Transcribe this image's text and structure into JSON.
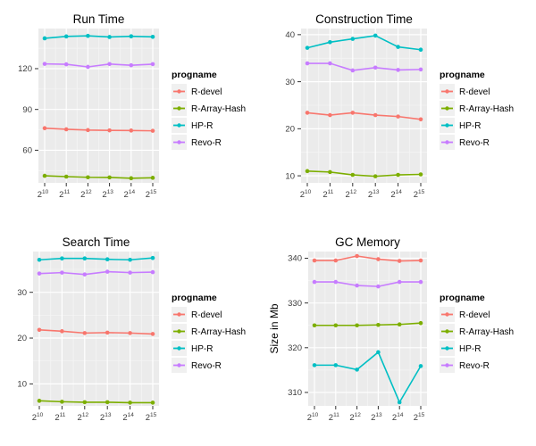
{
  "page": {
    "background": "#FFFFFF"
  },
  "theme": {
    "panel_bg": "#EBEBEB",
    "grid_major_color": "#FFFFFF",
    "grid_minor_color": "#F5F5F5",
    "tick_mark_color": "#333333",
    "tick_label_color": "#3C3C3C",
    "title_color": "#000000",
    "axis_title_color": "#000000",
    "legend_key_bg": "#F0F0F0",
    "legend_text_color": "#000000"
  },
  "legend": {
    "title": "progname",
    "entries": [
      {
        "label": "R-devel",
        "color": "#F8766D"
      },
      {
        "label": "R-Array-Hash",
        "color": "#7CAE00"
      },
      {
        "label": "HP-R",
        "color": "#00BFC4"
      },
      {
        "label": "Revo-R",
        "color": "#C77CFF"
      }
    ]
  },
  "x_axis": {
    "base": "2",
    "exponents": [
      "10",
      "11",
      "12",
      "13",
      "14",
      "15"
    ]
  },
  "chart_data": [
    {
      "type": "line",
      "title": "Run Time",
      "xlabel": "",
      "ylabel": "",
      "x_tick_labels": [
        "2^10",
        "2^11",
        "2^12",
        "2^13",
        "2^14",
        "2^15"
      ],
      "y_ticks": [
        60,
        90,
        120
      ],
      "ylim": [
        36,
        149.5
      ],
      "grid": true,
      "legend_position": "right",
      "series": [
        {
          "name": "R-devel",
          "values": [
            76.2,
            75.4,
            74.8,
            74.6,
            74.5,
            74.3
          ]
        },
        {
          "name": "R-Array-Hash",
          "values": [
            41.2,
            40.6,
            40.1,
            40.0,
            39.4,
            39.7
          ]
        },
        {
          "name": "HP-R",
          "values": [
            142.3,
            143.7,
            144.1,
            143.3,
            143.8,
            143.4
          ]
        },
        {
          "name": "Revo-R",
          "values": [
            123.5,
            123.2,
            121.3,
            123.4,
            122.5,
            123.3
          ]
        }
      ]
    },
    {
      "type": "line",
      "title": "Construction Time",
      "xlabel": "",
      "ylabel": "",
      "x_tick_labels": [
        "2^10",
        "2^11",
        "2^12",
        "2^13",
        "2^14",
        "2^15"
      ],
      "y_ticks": [
        10,
        20,
        30,
        40
      ],
      "ylim": [
        8.5,
        41.3
      ],
      "grid": true,
      "legend_position": "right",
      "series": [
        {
          "name": "R-devel",
          "values": [
            23.4,
            22.9,
            23.4,
            22.9,
            22.6,
            22.0
          ]
        },
        {
          "name": "R-Array-Hash",
          "values": [
            11.0,
            10.8,
            10.2,
            9.9,
            10.2,
            10.3
          ]
        },
        {
          "name": "HP-R",
          "values": [
            37.2,
            38.4,
            39.1,
            39.8,
            37.4,
            36.8
          ]
        },
        {
          "name": "Revo-R",
          "values": [
            33.9,
            33.9,
            32.4,
            33.0,
            32.5,
            32.6
          ]
        }
      ]
    },
    {
      "type": "line",
      "title": "Search Time",
      "xlabel": "",
      "ylabel": "",
      "x_tick_labels": [
        "2^10",
        "2^11",
        "2^12",
        "2^13",
        "2^14",
        "2^15"
      ],
      "y_ticks": [
        10,
        20,
        30
      ],
      "ylim": [
        5.2,
        38.9
      ],
      "grid": true,
      "legend_position": "right",
      "series": [
        {
          "name": "R-devel",
          "values": [
            21.8,
            21.5,
            21.1,
            21.2,
            21.1,
            20.9
          ]
        },
        {
          "name": "R-Array-Hash",
          "values": [
            6.3,
            6.1,
            6.0,
            6.0,
            5.9,
            5.9
          ]
        },
        {
          "name": "HP-R",
          "values": [
            37.1,
            37.4,
            37.4,
            37.2,
            37.1,
            37.5
          ]
        },
        {
          "name": "Revo-R",
          "values": [
            34.1,
            34.3,
            33.9,
            34.5,
            34.3,
            34.4
          ]
        }
      ]
    },
    {
      "type": "line",
      "title": "GC Memory",
      "xlabel": "",
      "ylabel": "Size in Mb",
      "x_tick_labels": [
        "2^10",
        "2^11",
        "2^12",
        "2^13",
        "2^14",
        "2^15"
      ],
      "y_ticks": [
        310,
        320,
        330,
        340
      ],
      "ylim": [
        307,
        341.5
      ],
      "grid": true,
      "legend_position": "right",
      "series": [
        {
          "name": "R-devel",
          "values": [
            339.5,
            339.5,
            340.5,
            339.8,
            339.4,
            339.5
          ]
        },
        {
          "name": "R-Array-Hash",
          "values": [
            325.0,
            325.0,
            325.0,
            325.1,
            325.2,
            325.5
          ]
        },
        {
          "name": "HP-R",
          "values": [
            316.1,
            316.1,
            315.1,
            319.0,
            307.8,
            315.9
          ]
        },
        {
          "name": "Revo-R",
          "values": [
            334.7,
            334.7,
            333.9,
            333.7,
            334.7,
            334.7
          ]
        }
      ]
    }
  ]
}
